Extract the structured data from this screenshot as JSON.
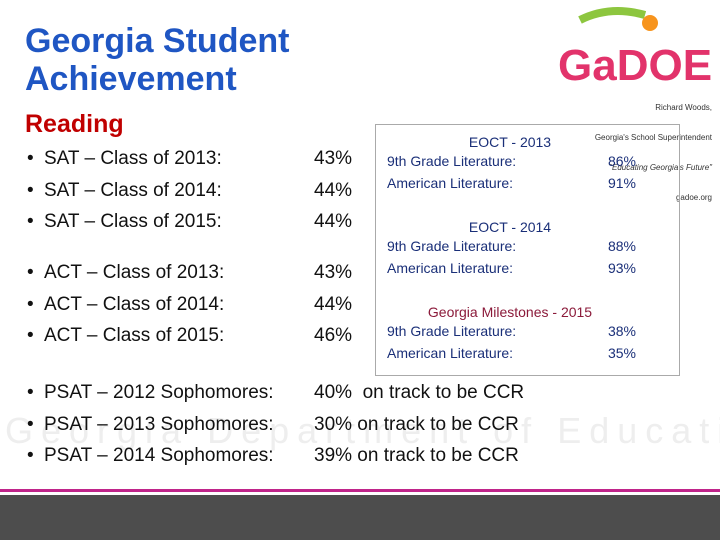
{
  "header": {
    "title": "Georgia Student Achievement",
    "subtitle": "Reading"
  },
  "logo": {
    "mark": "GaDOE",
    "name": "Richard Woods,",
    "role": "Georgia's School Superintendent",
    "motto": "\"Educating Georgia's Future\"",
    "url": "gadoe.org"
  },
  "watermark": "Georgia Department of Education",
  "groups": [
    {
      "rows": [
        [
          "SAT – Class of 2013:",
          "43%"
        ],
        [
          "SAT – Class of 2014:",
          "44%"
        ],
        [
          "SAT – Class of 2015:",
          "44%"
        ]
      ]
    },
    {
      "rows": [
        [
          "ACT – Class of 2013:",
          "43%"
        ],
        [
          "ACT – Class of 2014:",
          "44%"
        ],
        [
          "ACT – Class of 2015:",
          "46%"
        ]
      ]
    },
    {
      "rows": [
        [
          "PSAT – 2012 Sophomores:",
          "40%  on track to be CCR"
        ],
        [
          "PSAT – 2013 Sophomores:",
          "30% on track to be CCR"
        ],
        [
          "PSAT – 2014 Sophomores:",
          "39% on track to be CCR"
        ]
      ]
    }
  ],
  "eoct": [
    {
      "heading": "EOCT - 2013",
      "rows": [
        [
          "9th Grade Literature:",
          "86%"
        ],
        [
          "American Literature:",
          "91%"
        ]
      ]
    },
    {
      "heading": "EOCT - 2014",
      "rows": [
        [
          "9th Grade Literature:",
          "88%"
        ],
        [
          "American Literature:",
          "93%"
        ]
      ]
    },
    {
      "heading": "Georgia Milestones - 2015",
      "rows": [
        [
          "9th Grade Literature:",
          "38%"
        ],
        [
          "American Literature:",
          "35%"
        ]
      ]
    }
  ]
}
